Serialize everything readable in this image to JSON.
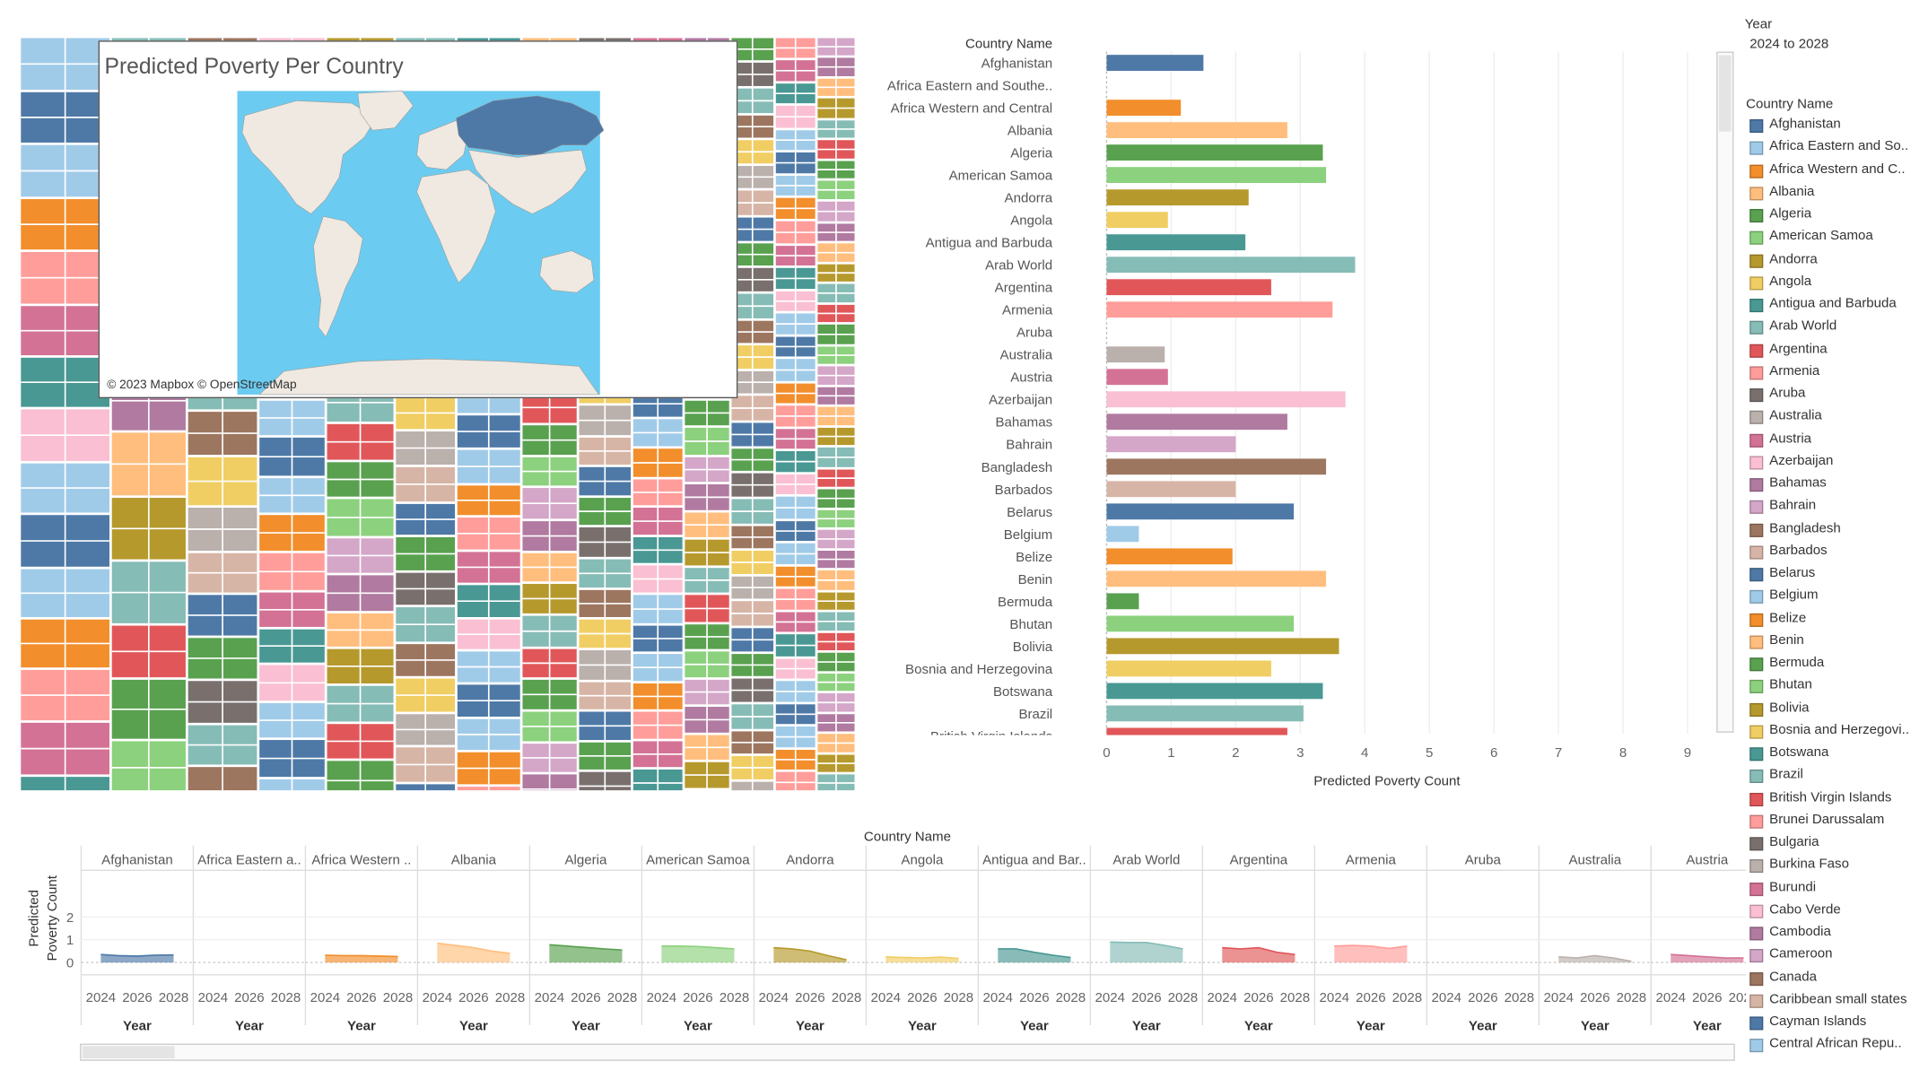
{
  "treemap": {
    "colors": [
      "#a0cbe8",
      "#ffbe7d",
      "#4e79a7",
      "#4e79a7",
      "#b6992d",
      "#59a14f",
      "#a0cbe8",
      "#86bcb6",
      "#79706e",
      "#f28e2b",
      "#e15759",
      "#86bcb6",
      "#ff9d9a",
      "#59a14f",
      "#9d7660",
      "#d37295",
      "#8cd17d",
      "#f1ce63",
      "#499894",
      "#d4a6c8",
      "#bab0ac",
      "#fabfd2",
      "#b07aa1",
      "#d7b5a6"
    ]
  },
  "map": {
    "title": "Predicted Poverty Per Country",
    "attribution": "© 2023 Mapbox © OpenStreetMap",
    "land_color": "#efe9e1",
    "water_color": "#6ccbf0",
    "highlight_color": "#4e79a7",
    "highlight_country": "Russia"
  },
  "bar_chart": {
    "row_header": "Country Name",
    "xlabel": "Predicted Poverty Count",
    "xticks": [
      "0",
      "1",
      "2",
      "3",
      "4",
      "5",
      "6",
      "7",
      "8",
      "9"
    ]
  },
  "chart_data": [
    {
      "type": "bar",
      "orientation": "horizontal",
      "categories": [
        "Afghanistan",
        "Africa Eastern and Southe..",
        "Africa Western and Central",
        "Albania",
        "Algeria",
        "American Samoa",
        "Andorra",
        "Angola",
        "Antigua and Barbuda",
        "Arab World",
        "Argentina",
        "Armenia",
        "Aruba",
        "Australia",
        "Austria",
        "Azerbaijan",
        "Bahamas",
        "Bahrain",
        "Bangladesh",
        "Barbados",
        "Belarus",
        "Belgium",
        "Belize",
        "Benin",
        "Bermuda",
        "Bhutan",
        "Bolivia",
        "Bosnia and Herzegovina",
        "Botswana",
        "Brazil",
        "British Virgin Islands"
      ],
      "values": [
        1.5,
        0,
        1.15,
        2.8,
        3.35,
        3.4,
        2.2,
        0.95,
        2.15,
        3.85,
        2.55,
        3.5,
        0,
        0.9,
        0.95,
        3.7,
        2.8,
        2.0,
        3.4,
        2.0,
        2.9,
        0.5,
        1.95,
        3.4,
        0.5,
        2.9,
        3.6,
        2.55,
        3.35,
        3.05,
        2.8
      ],
      "colors": [
        "#4e79a7",
        "#a0cbe8",
        "#f28e2b",
        "#ffbe7d",
        "#59a14f",
        "#8cd17d",
        "#b6992d",
        "#f1ce63",
        "#499894",
        "#86bcb6",
        "#e15759",
        "#ff9d9a",
        "#79706e",
        "#bab0ac",
        "#d37295",
        "#fabfd2",
        "#b07aa1",
        "#d4a6c8",
        "#9d7660",
        "#d7b5a6",
        "#4e79a7",
        "#a0cbe8",
        "#f28e2b",
        "#ffbe7d",
        "#59a14f",
        "#8cd17d",
        "#b6992d",
        "#f1ce63",
        "#499894",
        "#86bcb6",
        "#e15759"
      ],
      "xlabel": "Predicted Poverty Count",
      "ylabel": "Country Name",
      "xlim": [
        0,
        9.5
      ],
      "grid": true
    },
    {
      "type": "area",
      "panels_header": "Country Name",
      "panels": [
        "Afghanistan",
        "Africa Eastern a..",
        "Africa Western ..",
        "Albania",
        "Algeria",
        "American Samoa",
        "Andorra",
        "Angola",
        "Antigua and Bar..",
        "Arab World",
        "Argentina",
        "Armenia",
        "Aruba",
        "Australia",
        "Austria"
      ],
      "x": [
        2024,
        2025,
        2026,
        2027,
        2028
      ],
      "series": [
        {
          "values": [
            0.35,
            0.3,
            0.28,
            0.32,
            0.33
          ]
        },
        {
          "values": [
            0,
            0,
            0,
            0,
            0
          ]
        },
        {
          "values": [
            0.32,
            0.3,
            0.3,
            0.28,
            0.26
          ]
        },
        {
          "values": [
            0.85,
            0.75,
            0.65,
            0.5,
            0.4
          ]
        },
        {
          "values": [
            0.78,
            0.72,
            0.66,
            0.6,
            0.55
          ]
        },
        {
          "values": [
            0.72,
            0.72,
            0.7,
            0.65,
            0.6
          ]
        },
        {
          "values": [
            0.65,
            0.6,
            0.5,
            0.3,
            0.12
          ]
        },
        {
          "values": [
            0.25,
            0.22,
            0.2,
            0.24,
            0.18
          ]
        },
        {
          "values": [
            0.6,
            0.6,
            0.45,
            0.32,
            0.22
          ]
        },
        {
          "values": [
            0.9,
            0.88,
            0.88,
            0.75,
            0.6
          ]
        },
        {
          "values": [
            0.65,
            0.6,
            0.65,
            0.45,
            0.35
          ]
        },
        {
          "values": [
            0.72,
            0.75,
            0.72,
            0.62,
            0.72
          ]
        },
        {
          "values": [
            0,
            0,
            0,
            0,
            0
          ]
        },
        {
          "values": [
            0.25,
            0.2,
            0.3,
            0.2,
            0.05
          ]
        },
        {
          "values": [
            0.35,
            0.3,
            0.25,
            0.2,
            0.2
          ]
        }
      ],
      "colors": [
        "#4e79a7",
        "#a0cbe8",
        "#f28e2b",
        "#ffbe7d",
        "#59a14f",
        "#8cd17d",
        "#b6992d",
        "#f1ce63",
        "#499894",
        "#86bcb6",
        "#e15759",
        "#ff9d9a",
        "#79706e",
        "#bab0ac",
        "#d37295"
      ],
      "xlabel": "Year",
      "ylabel": "Predicted Poverty Count",
      "yticks": [
        "2",
        "1",
        "0"
      ],
      "xticks": [
        "2024",
        "2026",
        "2028"
      ],
      "ylim": [
        0,
        2
      ],
      "grid": true
    }
  ],
  "area_chart": {
    "header": "Country Name",
    "ylabel_line1": "Predicted",
    "ylabel_line2": "Poverty Count",
    "xlabel": "Year"
  },
  "filter": {
    "label": "Year",
    "value": "2024 to 2028"
  },
  "legend": {
    "title": "Country Name",
    "items": [
      {
        "label": "Afghanistan",
        "color": "#4e79a7"
      },
      {
        "label": "Africa Eastern and So..",
        "color": "#a0cbe8"
      },
      {
        "label": "Africa Western and C..",
        "color": "#f28e2b"
      },
      {
        "label": "Albania",
        "color": "#ffbe7d"
      },
      {
        "label": "Algeria",
        "color": "#59a14f"
      },
      {
        "label": "American Samoa",
        "color": "#8cd17d"
      },
      {
        "label": "Andorra",
        "color": "#b6992d"
      },
      {
        "label": "Angola",
        "color": "#f1ce63"
      },
      {
        "label": "Antigua and Barbuda",
        "color": "#499894"
      },
      {
        "label": "Arab World",
        "color": "#86bcb6"
      },
      {
        "label": "Argentina",
        "color": "#e15759"
      },
      {
        "label": "Armenia",
        "color": "#ff9d9a"
      },
      {
        "label": "Aruba",
        "color": "#79706e"
      },
      {
        "label": "Australia",
        "color": "#bab0ac"
      },
      {
        "label": "Austria",
        "color": "#d37295"
      },
      {
        "label": "Azerbaijan",
        "color": "#fabfd2"
      },
      {
        "label": "Bahamas",
        "color": "#b07aa1"
      },
      {
        "label": "Bahrain",
        "color": "#d4a6c8"
      },
      {
        "label": "Bangladesh",
        "color": "#9d7660"
      },
      {
        "label": "Barbados",
        "color": "#d7b5a6"
      },
      {
        "label": "Belarus",
        "color": "#4e79a7"
      },
      {
        "label": "Belgium",
        "color": "#a0cbe8"
      },
      {
        "label": "Belize",
        "color": "#f28e2b"
      },
      {
        "label": "Benin",
        "color": "#ffbe7d"
      },
      {
        "label": "Bermuda",
        "color": "#59a14f"
      },
      {
        "label": "Bhutan",
        "color": "#8cd17d"
      },
      {
        "label": "Bolivia",
        "color": "#b6992d"
      },
      {
        "label": "Bosnia and Herzegovi..",
        "color": "#f1ce63"
      },
      {
        "label": "Botswana",
        "color": "#499894"
      },
      {
        "label": "Brazil",
        "color": "#86bcb6"
      },
      {
        "label": "British Virgin Islands",
        "color": "#e15759"
      },
      {
        "label": "Brunei Darussalam",
        "color": "#ff9d9a"
      },
      {
        "label": "Bulgaria",
        "color": "#79706e"
      },
      {
        "label": "Burkina Faso",
        "color": "#bab0ac"
      },
      {
        "label": "Burundi",
        "color": "#d37295"
      },
      {
        "label": "Cabo Verde",
        "color": "#fabfd2"
      },
      {
        "label": "Cambodia",
        "color": "#b07aa1"
      },
      {
        "label": "Cameroon",
        "color": "#d4a6c8"
      },
      {
        "label": "Canada",
        "color": "#9d7660"
      },
      {
        "label": "Caribbean small states",
        "color": "#d7b5a6"
      },
      {
        "label": "Cayman Islands",
        "color": "#4e79a7"
      },
      {
        "label": "Central African Repu..",
        "color": "#a0cbe8"
      }
    ]
  }
}
